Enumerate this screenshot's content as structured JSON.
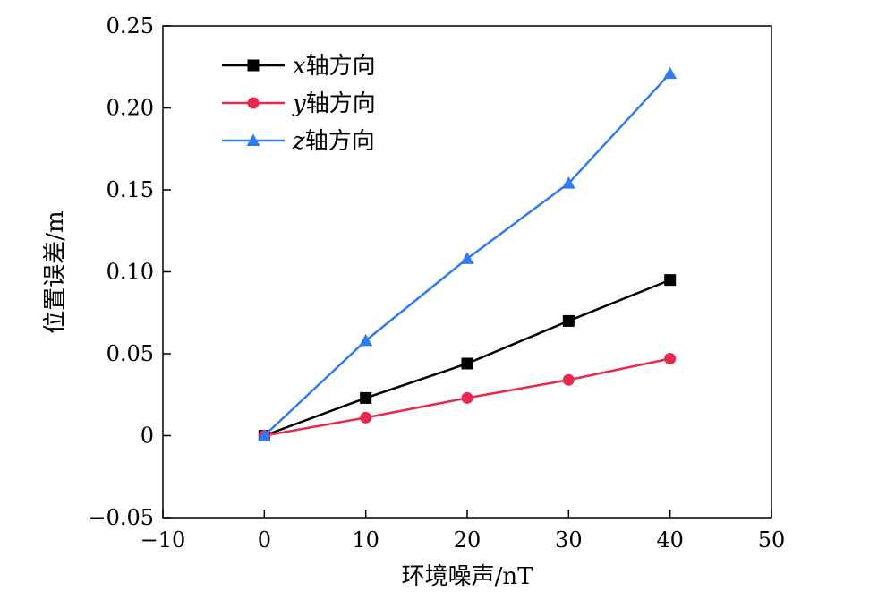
{
  "chart_data": {
    "type": "line",
    "title": "",
    "xlabel": "环境噪声/nT",
    "ylabel": "位置误差/m",
    "xlim": [
      -10,
      50
    ],
    "ylim": [
      -0.05,
      0.25
    ],
    "xticks": [
      -10,
      0,
      10,
      20,
      30,
      40,
      50
    ],
    "xtick_labels": [
      "−10",
      "0",
      "10",
      "20",
      "30",
      "40",
      "50"
    ],
    "yticks": [
      -0.05,
      0,
      0.05,
      0.1,
      0.15,
      0.2,
      0.25
    ],
    "ytick_labels": [
      "−0.05",
      "0",
      "0.05",
      "0.10",
      "0.15",
      "0.20",
      "0.25"
    ],
    "grid": false,
    "legend_position": "top-left",
    "x": [
      0,
      10,
      20,
      30,
      40
    ],
    "series": [
      {
        "name": "x轴方向",
        "name_var": "x",
        "name_rest": "轴方向",
        "color": "#000000",
        "marker": "square",
        "values": [
          0,
          0.023,
          0.044,
          0.07,
          0.095
        ]
      },
      {
        "name": "y轴方向",
        "name_var": "y",
        "name_rest": "轴方向",
        "color": "#e8294f",
        "marker": "circle",
        "values": [
          0,
          0.011,
          0.023,
          0.034,
          0.047
        ]
      },
      {
        "name": "z轴方向",
        "name_var": "z",
        "name_rest": "轴方向",
        "color": "#2f7bef",
        "marker": "triangle",
        "values": [
          0,
          0.058,
          0.108,
          0.154,
          0.221
        ]
      }
    ]
  }
}
